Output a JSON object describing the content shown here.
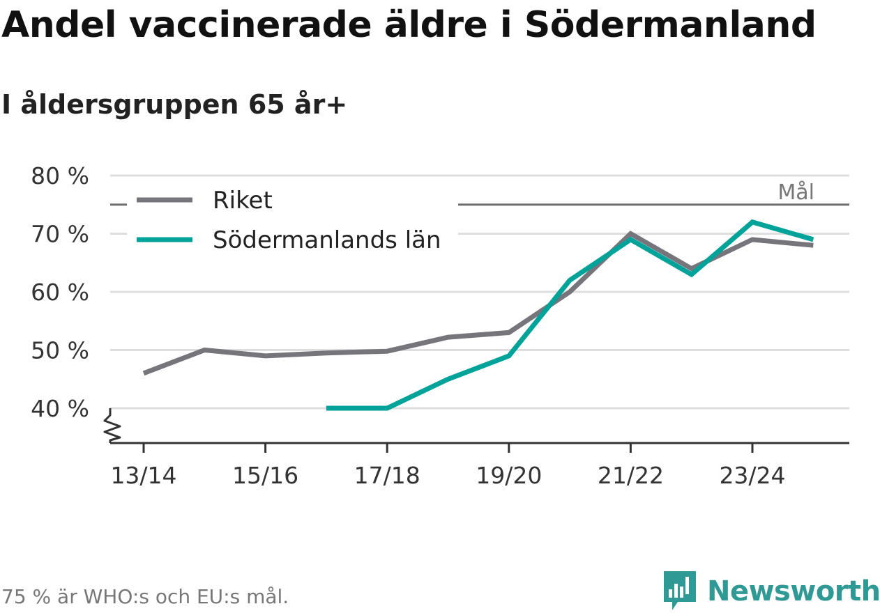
{
  "title": "Andel vaccinerade äldre i Södermanland",
  "subtitle": "I åldersgruppen 65 år+",
  "footnote": "75 % är WHO:s och EU:s mål.",
  "brand": "Newsworthy",
  "colors": {
    "riket": "#76757c",
    "lan": "#00a39a",
    "target": "#6e6e6e",
    "grid": "#dedede",
    "axis": "#333333",
    "brand": "#2f9a95"
  },
  "chart_data": {
    "type": "line",
    "x": [
      "13/14",
      "14/15",
      "15/16",
      "16/17",
      "17/18",
      "18/19",
      "19/20",
      "20/21",
      "21/22",
      "22/23",
      "23/24",
      "24/25"
    ],
    "x_tick_labels": [
      "13/14",
      "15/16",
      "17/18",
      "19/20",
      "21/22",
      "23/24"
    ],
    "series": [
      {
        "name": "Riket",
        "values": [
          46,
          50,
          49,
          49.5,
          49.8,
          52.2,
          53,
          60,
          70,
          64,
          69,
          68
        ]
      },
      {
        "name": "Södermanlands län",
        "values": [
          null,
          null,
          null,
          40,
          40,
          45,
          49,
          62,
          69,
          63,
          72,
          69
        ]
      }
    ],
    "y_ticks": [
      40,
      50,
      60,
      70,
      80
    ],
    "y_tick_labels": [
      "40 %",
      "50 %",
      "60 %",
      "70 %",
      "80 %"
    ],
    "ylim": [
      40,
      80
    ],
    "axis_break": true,
    "target": {
      "value": 75,
      "label": "Mål"
    },
    "legend": "top-left",
    "grid": true,
    "title": "Andel vaccinerade äldre i Södermanland",
    "xlabel": "",
    "ylabel": ""
  }
}
